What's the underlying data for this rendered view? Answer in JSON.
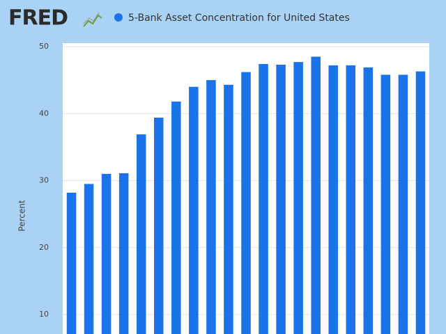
{
  "chart_data": {
    "type": "bar",
    "logo": "FRED",
    "y_label": "Percent",
    "categories": [
      null,
      null,
      null,
      null,
      null,
      null,
      null,
      null,
      null,
      null,
      null,
      null,
      null,
      null,
      null,
      null,
      null,
      null,
      null,
      null,
      null
    ],
    "series": [
      {
        "name": "5-Bank Asset Concentration for United States",
        "color": "#1a73e8",
        "values": [
          28.2,
          29.5,
          31.0,
          31.1,
          36.9,
          39.4,
          41.8,
          44.0,
          45.0,
          44.3,
          46.2,
          47.4,
          47.3,
          47.7,
          48.5,
          47.2,
          47.2,
          46.9,
          45.8,
          45.8,
          46.3
        ]
      }
    ],
    "ylim": [
      7.1,
      50
    ],
    "yticks": [
      10,
      20,
      30,
      40,
      50
    ],
    "grid": true,
    "legend": "top-left"
  }
}
